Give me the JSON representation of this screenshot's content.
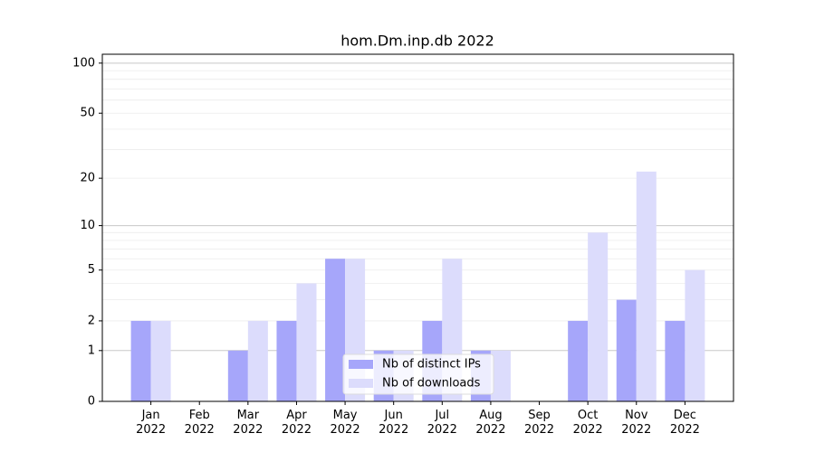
{
  "chart_data": {
    "type": "bar",
    "title": "hom.Dm.inp.db 2022",
    "categories": [
      "Jan\n2022",
      "Feb\n2022",
      "Mar\n2022",
      "Apr\n2022",
      "May\n2022",
      "Jun\n2022",
      "Jul\n2022",
      "Aug\n2022",
      "Sep\n2022",
      "Oct\n2022",
      "Nov\n2022",
      "Dec\n2022"
    ],
    "series": [
      {
        "name": "Nb of distinct IPs",
        "color": "#a6a6fa",
        "values": [
          2,
          0,
          1,
          2,
          6,
          1,
          2,
          1,
          0,
          2,
          3,
          2
        ]
      },
      {
        "name": "Nb of downloads",
        "color": "#dcdcfc",
        "values": [
          2,
          0,
          2,
          4,
          6,
          1,
          6,
          1,
          0,
          9,
          22,
          5
        ]
      }
    ],
    "yscale": "log1p",
    "ylim": [
      0,
      113
    ],
    "yticks": [
      0,
      1,
      2,
      5,
      10,
      20,
      50,
      100
    ],
    "grid_major": [
      1,
      10,
      100
    ],
    "grid_minor": [
      2,
      3,
      4,
      5,
      6,
      7,
      8,
      9,
      20,
      30,
      40,
      50,
      60,
      70,
      80,
      90
    ],
    "legend": "lower center"
  }
}
